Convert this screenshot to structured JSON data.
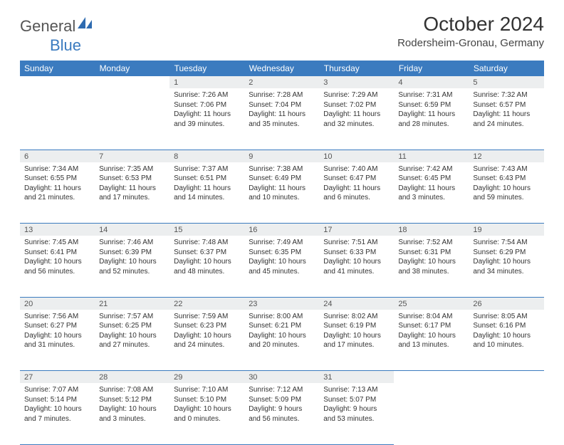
{
  "brand": {
    "part1": "General",
    "part2": "Blue"
  },
  "title": "October 2024",
  "location": "Rodersheim-Gronau, Germany",
  "colors": {
    "header_bg": "#3b7bbf",
    "header_text": "#ffffff",
    "daynum_bg": "#eceeef",
    "rule": "#3b7bbf",
    "text": "#333333",
    "background": "#ffffff"
  },
  "weekdays": [
    "Sunday",
    "Monday",
    "Tuesday",
    "Wednesday",
    "Thursday",
    "Friday",
    "Saturday"
  ],
  "weeks": [
    [
      null,
      null,
      {
        "n": "1",
        "sr": "Sunrise: 7:26 AM",
        "ss": "Sunset: 7:06 PM",
        "dl": "Daylight: 11 hours and 39 minutes."
      },
      {
        "n": "2",
        "sr": "Sunrise: 7:28 AM",
        "ss": "Sunset: 7:04 PM",
        "dl": "Daylight: 11 hours and 35 minutes."
      },
      {
        "n": "3",
        "sr": "Sunrise: 7:29 AM",
        "ss": "Sunset: 7:02 PM",
        "dl": "Daylight: 11 hours and 32 minutes."
      },
      {
        "n": "4",
        "sr": "Sunrise: 7:31 AM",
        "ss": "Sunset: 6:59 PM",
        "dl": "Daylight: 11 hours and 28 minutes."
      },
      {
        "n": "5",
        "sr": "Sunrise: 7:32 AM",
        "ss": "Sunset: 6:57 PM",
        "dl": "Daylight: 11 hours and 24 minutes."
      }
    ],
    [
      {
        "n": "6",
        "sr": "Sunrise: 7:34 AM",
        "ss": "Sunset: 6:55 PM",
        "dl": "Daylight: 11 hours and 21 minutes."
      },
      {
        "n": "7",
        "sr": "Sunrise: 7:35 AM",
        "ss": "Sunset: 6:53 PM",
        "dl": "Daylight: 11 hours and 17 minutes."
      },
      {
        "n": "8",
        "sr": "Sunrise: 7:37 AM",
        "ss": "Sunset: 6:51 PM",
        "dl": "Daylight: 11 hours and 14 minutes."
      },
      {
        "n": "9",
        "sr": "Sunrise: 7:38 AM",
        "ss": "Sunset: 6:49 PM",
        "dl": "Daylight: 11 hours and 10 minutes."
      },
      {
        "n": "10",
        "sr": "Sunrise: 7:40 AM",
        "ss": "Sunset: 6:47 PM",
        "dl": "Daylight: 11 hours and 6 minutes."
      },
      {
        "n": "11",
        "sr": "Sunrise: 7:42 AM",
        "ss": "Sunset: 6:45 PM",
        "dl": "Daylight: 11 hours and 3 minutes."
      },
      {
        "n": "12",
        "sr": "Sunrise: 7:43 AM",
        "ss": "Sunset: 6:43 PM",
        "dl": "Daylight: 10 hours and 59 minutes."
      }
    ],
    [
      {
        "n": "13",
        "sr": "Sunrise: 7:45 AM",
        "ss": "Sunset: 6:41 PM",
        "dl": "Daylight: 10 hours and 56 minutes."
      },
      {
        "n": "14",
        "sr": "Sunrise: 7:46 AM",
        "ss": "Sunset: 6:39 PM",
        "dl": "Daylight: 10 hours and 52 minutes."
      },
      {
        "n": "15",
        "sr": "Sunrise: 7:48 AM",
        "ss": "Sunset: 6:37 PM",
        "dl": "Daylight: 10 hours and 48 minutes."
      },
      {
        "n": "16",
        "sr": "Sunrise: 7:49 AM",
        "ss": "Sunset: 6:35 PM",
        "dl": "Daylight: 10 hours and 45 minutes."
      },
      {
        "n": "17",
        "sr": "Sunrise: 7:51 AM",
        "ss": "Sunset: 6:33 PM",
        "dl": "Daylight: 10 hours and 41 minutes."
      },
      {
        "n": "18",
        "sr": "Sunrise: 7:52 AM",
        "ss": "Sunset: 6:31 PM",
        "dl": "Daylight: 10 hours and 38 minutes."
      },
      {
        "n": "19",
        "sr": "Sunrise: 7:54 AM",
        "ss": "Sunset: 6:29 PM",
        "dl": "Daylight: 10 hours and 34 minutes."
      }
    ],
    [
      {
        "n": "20",
        "sr": "Sunrise: 7:56 AM",
        "ss": "Sunset: 6:27 PM",
        "dl": "Daylight: 10 hours and 31 minutes."
      },
      {
        "n": "21",
        "sr": "Sunrise: 7:57 AM",
        "ss": "Sunset: 6:25 PM",
        "dl": "Daylight: 10 hours and 27 minutes."
      },
      {
        "n": "22",
        "sr": "Sunrise: 7:59 AM",
        "ss": "Sunset: 6:23 PM",
        "dl": "Daylight: 10 hours and 24 minutes."
      },
      {
        "n": "23",
        "sr": "Sunrise: 8:00 AM",
        "ss": "Sunset: 6:21 PM",
        "dl": "Daylight: 10 hours and 20 minutes."
      },
      {
        "n": "24",
        "sr": "Sunrise: 8:02 AM",
        "ss": "Sunset: 6:19 PM",
        "dl": "Daylight: 10 hours and 17 minutes."
      },
      {
        "n": "25",
        "sr": "Sunrise: 8:04 AM",
        "ss": "Sunset: 6:17 PM",
        "dl": "Daylight: 10 hours and 13 minutes."
      },
      {
        "n": "26",
        "sr": "Sunrise: 8:05 AM",
        "ss": "Sunset: 6:16 PM",
        "dl": "Daylight: 10 hours and 10 minutes."
      }
    ],
    [
      {
        "n": "27",
        "sr": "Sunrise: 7:07 AM",
        "ss": "Sunset: 5:14 PM",
        "dl": "Daylight: 10 hours and 7 minutes."
      },
      {
        "n": "28",
        "sr": "Sunrise: 7:08 AM",
        "ss": "Sunset: 5:12 PM",
        "dl": "Daylight: 10 hours and 3 minutes."
      },
      {
        "n": "29",
        "sr": "Sunrise: 7:10 AM",
        "ss": "Sunset: 5:10 PM",
        "dl": "Daylight: 10 hours and 0 minutes."
      },
      {
        "n": "30",
        "sr": "Sunrise: 7:12 AM",
        "ss": "Sunset: 5:09 PM",
        "dl": "Daylight: 9 hours and 56 minutes."
      },
      {
        "n": "31",
        "sr": "Sunrise: 7:13 AM",
        "ss": "Sunset: 5:07 PM",
        "dl": "Daylight: 9 hours and 53 minutes."
      },
      null,
      null
    ]
  ]
}
